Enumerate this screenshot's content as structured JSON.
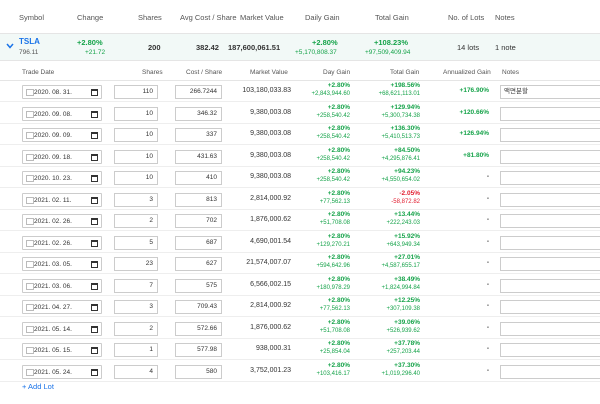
{
  "columns": {
    "symbol": "Symbol",
    "change": "Change",
    "shares": "Shares",
    "avg_cost": "Avg Cost / Share",
    "market_value": "Market Value",
    "daily_gain": "Daily Gain",
    "total_gain": "Total Gain",
    "num_lots": "No. of Lots",
    "notes": "Notes"
  },
  "summary": {
    "symbol": "TSLA",
    "price": "796.11",
    "change_pct": "+2.80%",
    "change_abs": "+21.72",
    "shares": "200",
    "avg_cost": "382.42",
    "market_value": "187,600,061.51",
    "daily_gain_pct": "+2.80%",
    "daily_gain_abs": "+5,170,808.37",
    "total_gain_pct": "+108.23%",
    "total_gain_abs": "+97,509,409.94",
    "lots": "14 lots",
    "notes": "1 note"
  },
  "lot_columns": {
    "trade_date": "Trade Date",
    "shares": "Shares",
    "cost_share": "Cost / Share",
    "market_value": "Market Value",
    "day_gain": "Day Gain",
    "total_gain": "Total Gain",
    "annualized": "Annualized Gain",
    "notes": "Notes"
  },
  "lots": [
    {
      "date": "2020. 08. 31.",
      "shares": "110",
      "cost": "266.7244",
      "mv": "103,180,033.83",
      "dg_pct": "+2.80%",
      "dg_abs": "+2,843,944.60",
      "tg_pct": "+198.56%",
      "tg_abs": "+68,621,113.01",
      "tg_neg": false,
      "ann": "+176.90%",
      "note": "액면분할"
    },
    {
      "date": "2020. 09. 08.",
      "shares": "10",
      "cost": "346.32",
      "mv": "9,380,003.08",
      "dg_pct": "+2.80%",
      "dg_abs": "+258,540.42",
      "tg_pct": "+129.94%",
      "tg_abs": "+5,300,734.38",
      "tg_neg": false,
      "ann": "+120.66%",
      "note": ""
    },
    {
      "date": "2020. 09. 09.",
      "shares": "10",
      "cost": "337",
      "mv": "9,380,003.08",
      "dg_pct": "+2.80%",
      "dg_abs": "+258,540.42",
      "tg_pct": "+136.30%",
      "tg_abs": "+5,410,513.73",
      "tg_neg": false,
      "ann": "+126.94%",
      "note": ""
    },
    {
      "date": "2020. 09. 18.",
      "shares": "10",
      "cost": "431.63",
      "mv": "9,380,003.08",
      "dg_pct": "+2.80%",
      "dg_abs": "+258,540.42",
      "tg_pct": "+84.50%",
      "tg_abs": "+4,295,876.41",
      "tg_neg": false,
      "ann": "+81.80%",
      "note": ""
    },
    {
      "date": "2020. 10. 23.",
      "shares": "10",
      "cost": "410",
      "mv": "9,380,003.08",
      "dg_pct": "+2.80%",
      "dg_abs": "+258,540.42",
      "tg_pct": "+94.23%",
      "tg_abs": "+4,550,654.02",
      "tg_neg": false,
      "ann": "-",
      "note": ""
    },
    {
      "date": "2021. 02. 11.",
      "shares": "3",
      "cost": "813",
      "mv": "2,814,000.92",
      "dg_pct": "+2.80%",
      "dg_abs": "+77,562.13",
      "tg_pct": "-2.05%",
      "tg_abs": "-58,872.82",
      "tg_neg": true,
      "ann": "-",
      "note": ""
    },
    {
      "date": "2021. 02. 26.",
      "shares": "2",
      "cost": "702",
      "mv": "1,876,000.62",
      "dg_pct": "+2.80%",
      "dg_abs": "+51,708.08",
      "tg_pct": "+13.44%",
      "tg_abs": "+222,243.03",
      "tg_neg": false,
      "ann": "-",
      "note": ""
    },
    {
      "date": "2021. 02. 26.",
      "shares": "5",
      "cost": "687",
      "mv": "4,690,001.54",
      "dg_pct": "+2.80%",
      "dg_abs": "+129,270.21",
      "tg_pct": "+15.92%",
      "tg_abs": "+643,949.34",
      "tg_neg": false,
      "ann": "-",
      "note": ""
    },
    {
      "date": "2021. 03. 05.",
      "shares": "23",
      "cost": "627",
      "mv": "21,574,007.07",
      "dg_pct": "+2.80%",
      "dg_abs": "+594,642.96",
      "tg_pct": "+27.01%",
      "tg_abs": "+4,587,655.17",
      "tg_neg": false,
      "ann": "-",
      "note": ""
    },
    {
      "date": "2021. 03. 06.",
      "shares": "7",
      "cost": "575",
      "mv": "6,566,002.15",
      "dg_pct": "+2.80%",
      "dg_abs": "+180,978.29",
      "tg_pct": "+38.49%",
      "tg_abs": "+1,824,994.84",
      "tg_neg": false,
      "ann": "-",
      "note": ""
    },
    {
      "date": "2021. 04. 27.",
      "shares": "3",
      "cost": "709.43",
      "mv": "2,814,000.92",
      "dg_pct": "+2.80%",
      "dg_abs": "+77,562.13",
      "tg_pct": "+12.25%",
      "tg_abs": "+307,109.38",
      "tg_neg": false,
      "ann": "-",
      "note": ""
    },
    {
      "date": "2021. 05. 14.",
      "shares": "2",
      "cost": "572.66",
      "mv": "1,876,000.62",
      "dg_pct": "+2.80%",
      "dg_abs": "+51,708.08",
      "tg_pct": "+39.06%",
      "tg_abs": "+526,939.62",
      "tg_neg": false,
      "ann": "-",
      "note": ""
    },
    {
      "date": "2021. 05. 15.",
      "shares": "1",
      "cost": "577.98",
      "mv": "938,000.31",
      "dg_pct": "+2.80%",
      "dg_abs": "+25,854.04",
      "tg_pct": "+37.78%",
      "tg_abs": "+257,203.44",
      "tg_neg": false,
      "ann": "-",
      "note": ""
    },
    {
      "date": "2021. 05. 24.",
      "shares": "4",
      "cost": "580",
      "mv": "3,752,001.23",
      "dg_pct": "+2.80%",
      "dg_abs": "+103,416.17",
      "tg_pct": "+37.30%",
      "tg_abs": "+1,019,296.40",
      "tg_neg": false,
      "ann": "-",
      "note": ""
    }
  ],
  "add_lot_label": "+ Add Lot",
  "colors": {
    "positive": "#16a34a",
    "negative": "#e11d2f",
    "link": "#1a73e8",
    "summary_bg": "#f2f9f7"
  }
}
